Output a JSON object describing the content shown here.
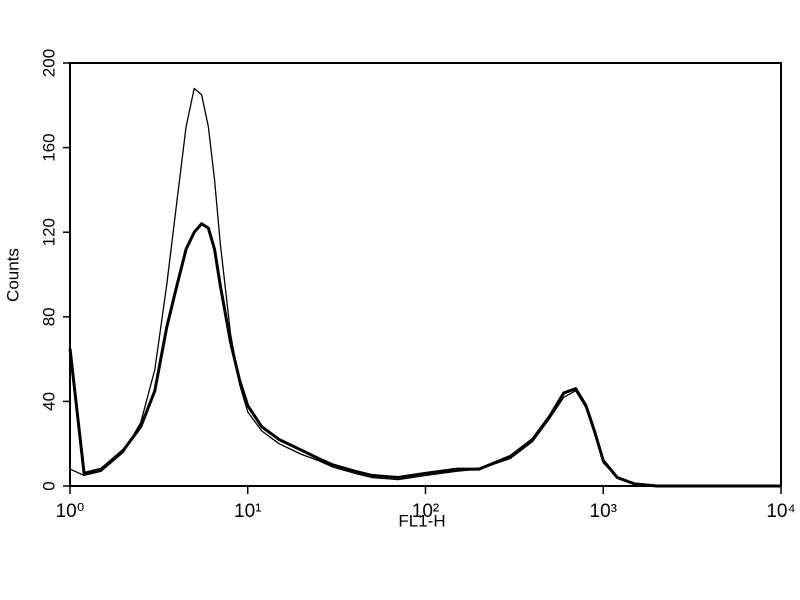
{
  "chart_data": {
    "type": "line",
    "x_label": "FL1-H",
    "y_label": "Counts",
    "xscale": "log",
    "xlim": [
      1,
      10000
    ],
    "xticks": [
      {
        "value": 1,
        "label": "10⁰"
      },
      {
        "value": 10,
        "label": "10¹"
      },
      {
        "value": 100,
        "label": "10²"
      },
      {
        "value": 1000,
        "label": "10³"
      },
      {
        "value": 10000,
        "label": "10⁴"
      }
    ],
    "ylim": [
      0,
      200
    ],
    "yticks": [
      0,
      40,
      80,
      120,
      160,
      200
    ],
    "grid": false,
    "x": [
      1,
      1.2,
      1.5,
      2,
      2.5,
      3,
      3.5,
      4,
      4.5,
      5,
      5.5,
      6,
      6.5,
      7,
      8,
      9,
      10,
      12,
      15,
      20,
      25,
      30,
      40,
      50,
      70,
      100,
      150,
      200,
      300,
      400,
      500,
      600,
      700,
      800,
      900,
      1000,
      1200,
      1500,
      2000,
      3000,
      5000,
      10000
    ],
    "series": [
      {
        "color": "#000000",
        "line_width": 1.3,
        "values": [
          8,
          5,
          7,
          16,
          30,
          55,
          95,
          135,
          170,
          188,
          185,
          170,
          145,
          115,
          72,
          48,
          35,
          26,
          20,
          15,
          12,
          9,
          6,
          4,
          3,
          5,
          7,
          8,
          13,
          21,
          32,
          42,
          45,
          37,
          24,
          11,
          4,
          1,
          0,
          0,
          0,
          0
        ]
      },
      {
        "color": "#000000",
        "line_width": 3,
        "values": [
          65,
          6,
          8,
          17,
          28,
          45,
          75,
          95,
          112,
          120,
          124,
          122,
          112,
          95,
          68,
          50,
          38,
          28,
          22,
          17,
          13,
          10,
          7,
          5,
          4,
          6,
          8,
          8,
          14,
          22,
          33,
          44,
          46,
          38,
          25,
          12,
          4,
          1,
          0,
          0,
          0,
          0
        ]
      }
    ]
  }
}
